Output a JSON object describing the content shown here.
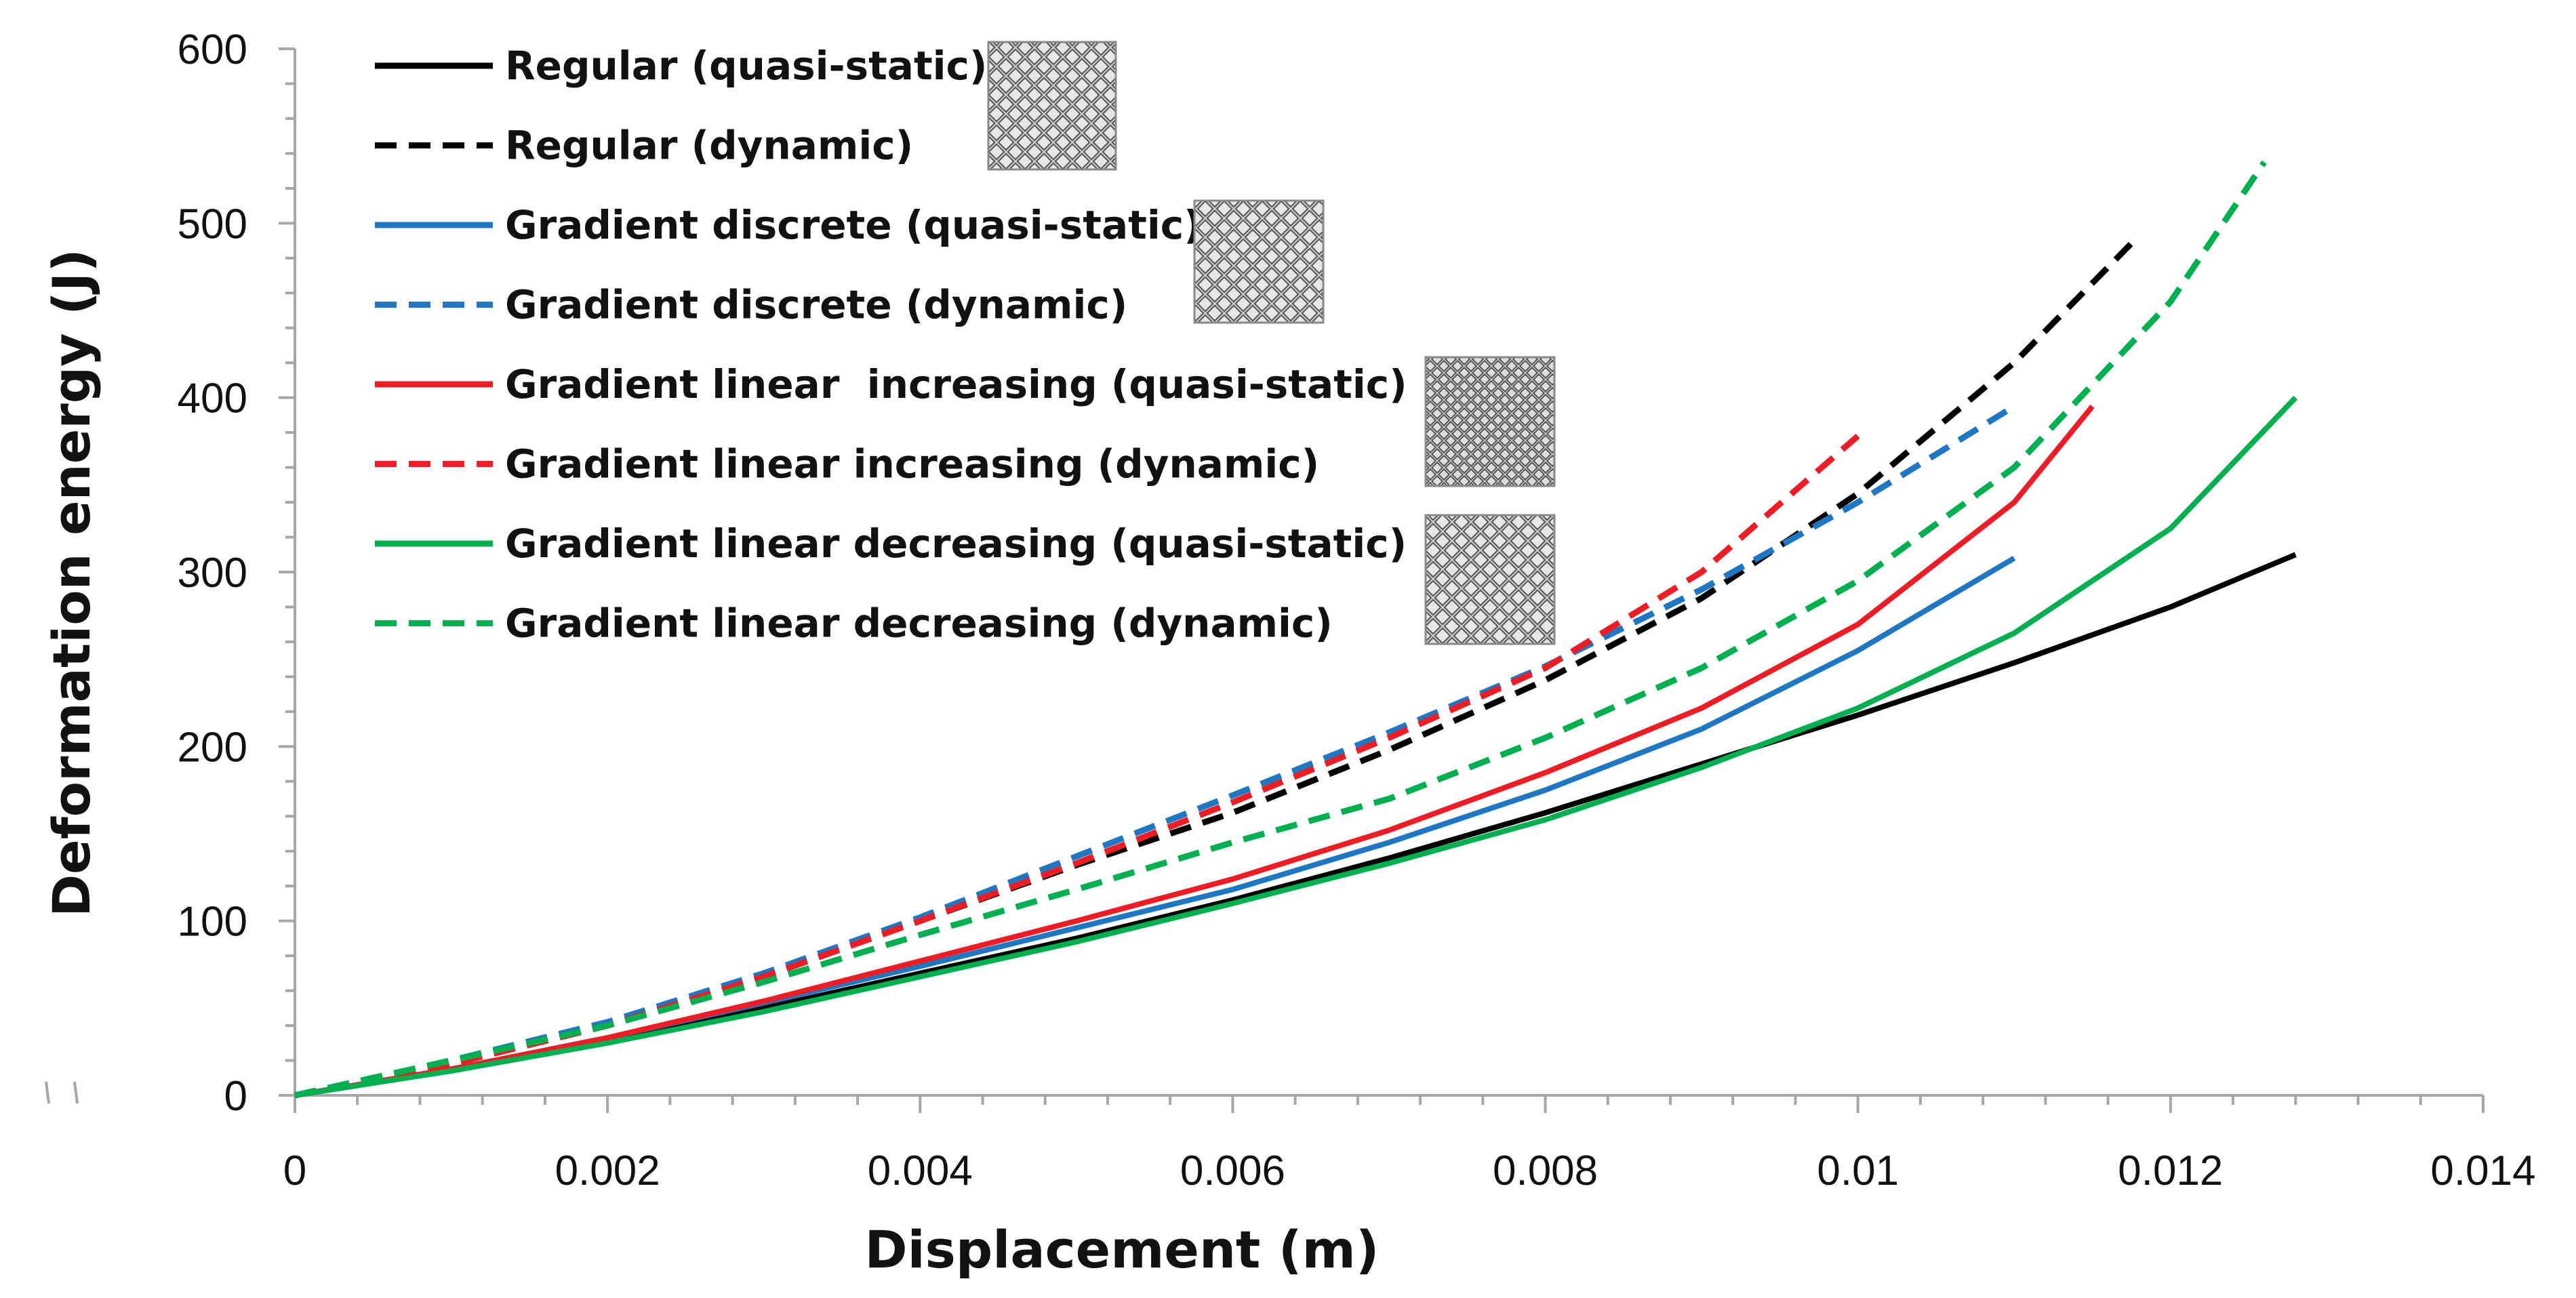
{
  "chart_data": {
    "type": "line",
    "title": "",
    "xlabel": "Displacement (m)",
    "ylabel": "Deformation energy (J)",
    "xlim": [
      0,
      0.014
    ],
    "ylim": [
      0,
      600
    ],
    "x_ticks": [
      0,
      0.002,
      0.004,
      0.006,
      0.008,
      0.01,
      0.012,
      0.014
    ],
    "x_tick_labels": [
      "0",
      "0.002",
      "0.004",
      "0.006",
      "0.008",
      "0.01",
      "0.012",
      "0.014"
    ],
    "y_ticks": [
      0,
      100,
      200,
      300,
      400,
      500,
      600
    ],
    "y_tick_labels": [
      "0",
      "100",
      "200",
      "300",
      "400",
      "500",
      "600"
    ],
    "grid": false,
    "legend_position": "top-left",
    "lattice_insets": [
      "regular-lattice",
      "gradient-discrete-lattice",
      "gradient-linear-increasing-lattice",
      "gradient-linear-decreasing-lattice"
    ],
    "series": [
      {
        "name": "Regular (quasi-static)",
        "color": "#000000",
        "dash": "solid",
        "x": [
          0,
          0.001,
          0.002,
          0.003,
          0.004,
          0.005,
          0.006,
          0.007,
          0.008,
          0.009,
          0.01,
          0.011,
          0.012,
          0.0128
        ],
        "y": [
          0,
          15,
          32,
          50,
          70,
          90,
          112,
          136,
          162,
          190,
          218,
          248,
          280,
          310
        ]
      },
      {
        "name": "Regular (dynamic)",
        "color": "#000000",
        "dash": "dashed",
        "x": [
          0,
          0.001,
          0.002,
          0.003,
          0.004,
          0.005,
          0.006,
          0.007,
          0.008,
          0.009,
          0.01,
          0.011,
          0.0118
        ],
        "y": [
          0,
          18,
          40,
          68,
          100,
          132,
          162,
          198,
          238,
          285,
          345,
          420,
          493
        ]
      },
      {
        "name": "Gradient discrete (quasi-static)",
        "color": "#1f77c4",
        "dash": "solid",
        "x": [
          0,
          0.001,
          0.002,
          0.003,
          0.004,
          0.005,
          0.006,
          0.007,
          0.008,
          0.009,
          0.01,
          0.011
        ],
        "y": [
          0,
          15,
          33,
          53,
          74,
          96,
          118,
          145,
          175,
          210,
          255,
          308
        ]
      },
      {
        "name": "Gradient discrete (dynamic)",
        "color": "#1f77c4",
        "dash": "dashed",
        "x": [
          0,
          0.001,
          0.002,
          0.003,
          0.004,
          0.005,
          0.006,
          0.007,
          0.008,
          0.009,
          0.01,
          0.011
        ],
        "y": [
          0,
          20,
          42,
          70,
          102,
          137,
          172,
          208,
          246,
          290,
          340,
          395
        ]
      },
      {
        "name": "Gradient linear  increasing (quasi-static)",
        "color": "#ee1c25",
        "dash": "solid",
        "x": [
          0,
          0.001,
          0.002,
          0.003,
          0.004,
          0.005,
          0.006,
          0.007,
          0.008,
          0.009,
          0.01,
          0.011,
          0.0115
        ],
        "y": [
          0,
          15,
          33,
          54,
          77,
          100,
          124,
          152,
          185,
          222,
          270,
          340,
          395
        ]
      },
      {
        "name": "Gradient linear increasing (dynamic)",
        "color": "#ee1c25",
        "dash": "dashed",
        "x": [
          0,
          0.001,
          0.002,
          0.003,
          0.004,
          0.005,
          0.006,
          0.007,
          0.008,
          0.009,
          0.01
        ],
        "y": [
          0,
          18,
          40,
          68,
          100,
          133,
          168,
          205,
          245,
          300,
          378
        ]
      },
      {
        "name": "Gradient linear decreasing (quasi-static)",
        "color": "#00b050",
        "dash": "solid",
        "x": [
          0,
          0.001,
          0.002,
          0.003,
          0.004,
          0.005,
          0.006,
          0.007,
          0.008,
          0.009,
          0.01,
          0.011,
          0.012,
          0.0128
        ],
        "y": [
          0,
          14,
          30,
          48,
          68,
          88,
          110,
          133,
          158,
          188,
          222,
          265,
          325,
          400
        ]
      },
      {
        "name": "Gradient linear decreasing (dynamic)",
        "color": "#00b050",
        "dash": "dashed",
        "x": [
          0,
          0.001,
          0.002,
          0.003,
          0.004,
          0.005,
          0.006,
          0.007,
          0.008,
          0.009,
          0.01,
          0.011,
          0.012,
          0.0126
        ],
        "y": [
          0,
          20,
          40,
          65,
          92,
          118,
          145,
          170,
          205,
          245,
          295,
          360,
          455,
          535
        ]
      }
    ]
  }
}
